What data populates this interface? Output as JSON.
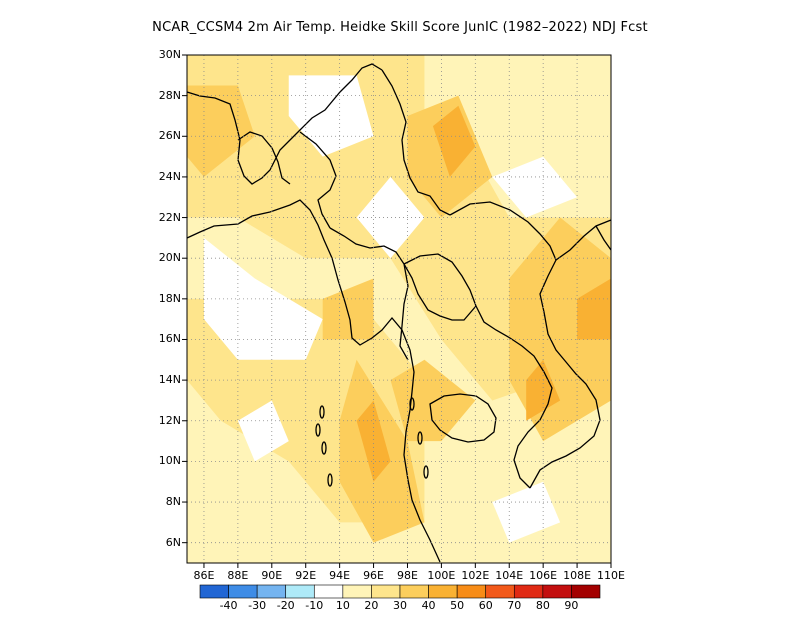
{
  "title": "NCAR_CCSM4  2m Air Temp. Heidke Skill Score JunIC (1982–2022) NDJ Fcst",
  "map": {
    "lon_range": [
      85,
      110
    ],
    "lat_range": [
      5,
      30
    ],
    "xticks": [
      {
        "v": 86,
        "label": "86E"
      },
      {
        "v": 88,
        "label": "88E"
      },
      {
        "v": 90,
        "label": "90E"
      },
      {
        "v": 92,
        "label": "92E"
      },
      {
        "v": 94,
        "label": "94E"
      },
      {
        "v": 96,
        "label": "96E"
      },
      {
        "v": 98,
        "label": "98E"
      },
      {
        "v": 100,
        "label": "100E"
      },
      {
        "v": 102,
        "label": "102E"
      },
      {
        "v": 104,
        "label": "104E"
      },
      {
        "v": 106,
        "label": "106E"
      },
      {
        "v": 108,
        "label": "108E"
      },
      {
        "v": 110,
        "label": "110E"
      }
    ],
    "yticks": [
      {
        "v": 6,
        "label": "6N"
      },
      {
        "v": 8,
        "label": "8N"
      },
      {
        "v": 10,
        "label": "10N"
      },
      {
        "v": 12,
        "label": "12N"
      },
      {
        "v": 14,
        "label": "14N"
      },
      {
        "v": 16,
        "label": "16N"
      },
      {
        "v": 18,
        "label": "18N"
      },
      {
        "v": 20,
        "label": "20N"
      },
      {
        "v": 22,
        "label": "22N"
      },
      {
        "v": 24,
        "label": "24N"
      },
      {
        "v": 26,
        "label": "26N"
      },
      {
        "v": 28,
        "label": "28N"
      },
      {
        "v": 30,
        "label": "30N"
      }
    ],
    "grid": "dotted"
  },
  "colorbar": {
    "colors": [
      "#2166d4",
      "#3e8ce6",
      "#74b4f0",
      "#aeeaf8",
      "#ffffff",
      "#fff4b8",
      "#fee58c",
      "#fcce5c",
      "#f9b133",
      "#f78c17",
      "#f2591a",
      "#e02a14",
      "#c30f0f",
      "#a30000"
    ],
    "labels": [
      "-40",
      "-30",
      "-20",
      "-10",
      "10",
      "20",
      "30",
      "40",
      "50",
      "60",
      "70",
      "80",
      "90"
    ]
  },
  "chart_data": {
    "type": "heatmap",
    "title": "NCAR_CCSM4  2m Air Temp. Heidke Skill Score JunIC (1982–2022) NDJ Fcst",
    "xlim": [
      85,
      110
    ],
    "ylim": [
      5,
      30
    ],
    "level_colors": {
      "0-10": "#ffffff",
      "10-20": "#fff4b8",
      "20-30": "#fee58c",
      "30-40": "#fcce5c",
      "40-50": "#f9b133"
    },
    "patches": [
      {
        "level": 10,
        "coords": [
          [
            85,
            5
          ],
          [
            110,
            5
          ],
          [
            110,
            30
          ],
          [
            85,
            30
          ]
        ]
      },
      {
        "level": 20,
        "coords": [
          [
            85,
            30
          ],
          [
            99,
            30
          ],
          [
            99,
            26
          ],
          [
            102,
            25
          ],
          [
            104,
            22
          ],
          [
            110,
            22
          ],
          [
            110,
            15
          ],
          [
            103,
            13
          ],
          [
            100,
            16
          ],
          [
            97,
            20
          ],
          [
            92,
            20
          ],
          [
            88,
            22
          ],
          [
            85,
            22
          ]
        ]
      },
      {
        "level": 20,
        "coords": [
          [
            85,
            18
          ],
          [
            95,
            18
          ],
          [
            99,
            14
          ],
          [
            99,
            7
          ],
          [
            94,
            7
          ],
          [
            91,
            10
          ],
          [
            87,
            12
          ],
          [
            85,
            14
          ]
        ]
      },
      {
        "level": 30,
        "coords": [
          [
            85,
            28.5
          ],
          [
            88,
            28.5
          ],
          [
            89,
            26
          ],
          [
            86,
            24
          ],
          [
            85,
            25
          ]
        ]
      },
      {
        "level": 30,
        "coords": [
          [
            98,
            27
          ],
          [
            101,
            28
          ],
          [
            103,
            24
          ],
          [
            100,
            22
          ],
          [
            98,
            24
          ]
        ]
      },
      {
        "level": 30,
        "coords": [
          [
            95,
            15
          ],
          [
            98,
            11
          ],
          [
            99,
            7
          ],
          [
            96,
            6
          ],
          [
            94,
            9
          ],
          [
            94,
            12
          ]
        ]
      },
      {
        "level": 30,
        "coords": [
          [
            104,
            19
          ],
          [
            107,
            22
          ],
          [
            110,
            20
          ],
          [
            110,
            13
          ],
          [
            106,
            11
          ],
          [
            104,
            14
          ]
        ]
      },
      {
        "level": 30,
        "coords": [
          [
            93,
            18
          ],
          [
            96,
            19
          ],
          [
            96,
            16
          ],
          [
            93,
            16
          ]
        ]
      },
      {
        "level": 30,
        "coords": [
          [
            97,
            14
          ],
          [
            99,
            15
          ],
          [
            102,
            13
          ],
          [
            100,
            11
          ],
          [
            98,
            11
          ]
        ]
      },
      {
        "level": 40,
        "coords": [
          [
            99.5,
            26.5
          ],
          [
            101,
            27.5
          ],
          [
            102,
            25.5
          ],
          [
            100.5,
            24
          ]
        ]
      },
      {
        "level": 40,
        "coords": [
          [
            108,
            18
          ],
          [
            110,
            19
          ],
          [
            110,
            16
          ],
          [
            108,
            16
          ]
        ]
      },
      {
        "level": 40,
        "coords": [
          [
            95,
            12
          ],
          [
            96,
            13
          ],
          [
            97,
            10
          ],
          [
            96,
            9
          ]
        ]
      },
      {
        "level": 40,
        "coords": [
          [
            105,
            14
          ],
          [
            106,
            15
          ],
          [
            107,
            13
          ],
          [
            105,
            12
          ]
        ]
      },
      {
        "level": 0,
        "coords": [
          [
            86,
            21
          ],
          [
            89,
            19
          ],
          [
            93,
            17
          ],
          [
            92,
            15
          ],
          [
            88,
            15
          ],
          [
            86,
            17
          ]
        ]
      },
      {
        "level": 0,
        "coords": [
          [
            91,
            29
          ],
          [
            95,
            29
          ],
          [
            96,
            26
          ],
          [
            93,
            25
          ],
          [
            91,
            27
          ]
        ]
      },
      {
        "level": 0,
        "coords": [
          [
            95,
            22
          ],
          [
            97,
            24
          ],
          [
            99,
            22
          ],
          [
            97,
            20
          ]
        ]
      },
      {
        "level": 0,
        "coords": [
          [
            103,
            24
          ],
          [
            106,
            25
          ],
          [
            108,
            23
          ],
          [
            105,
            22
          ]
        ]
      },
      {
        "level": 0,
        "coords": [
          [
            88,
            12
          ],
          [
            90,
            13
          ],
          [
            91,
            11
          ],
          [
            89,
            10
          ]
        ]
      },
      {
        "level": 0,
        "coords": [
          [
            103,
            8
          ],
          [
            106,
            9
          ],
          [
            107,
            7
          ],
          [
            104,
            6
          ]
        ]
      }
    ]
  }
}
